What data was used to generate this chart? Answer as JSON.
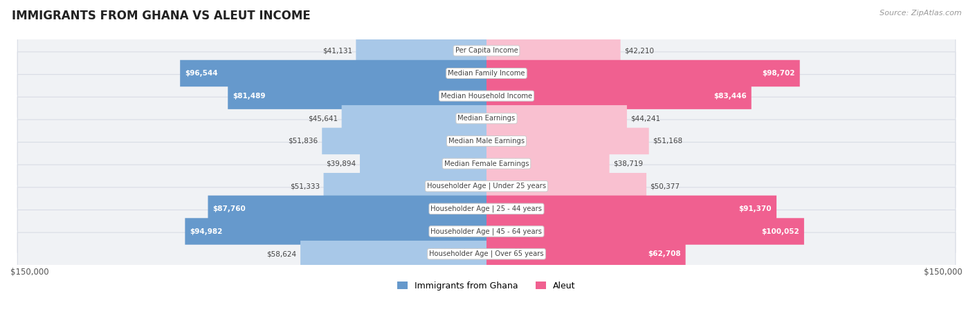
{
  "title": "IMMIGRANTS FROM GHANA VS ALEUT INCOME",
  "source": "Source: ZipAtlas.com",
  "categories": [
    "Per Capita Income",
    "Median Family Income",
    "Median Household Income",
    "Median Earnings",
    "Median Male Earnings",
    "Median Female Earnings",
    "Householder Age | Under 25 years",
    "Householder Age | 25 - 44 years",
    "Householder Age | 45 - 64 years",
    "Householder Age | Over 65 years"
  ],
  "ghana_values": [
    41131,
    96544,
    81489,
    45641,
    51836,
    39894,
    51333,
    87760,
    94982,
    58624
  ],
  "aleut_values": [
    42210,
    98702,
    83446,
    44241,
    51168,
    38719,
    50377,
    91370,
    100052,
    62708
  ],
  "ghana_color_light": "#a8c8e8",
  "ghana_color_dark": "#6699cc",
  "aleut_color_light": "#f9c0d0",
  "aleut_color_dark": "#f06090",
  "max_value": 150000,
  "row_bg_color": "#f0f2f5",
  "row_border_color": "#d8dce5",
  "fig_bg": "#ffffff",
  "xlabel_left": "$150,000",
  "xlabel_right": "$150,000",
  "legend_ghana": "Immigrants from Ghana",
  "legend_aleut": "Aleut",
  "dark_threshold": 60000
}
